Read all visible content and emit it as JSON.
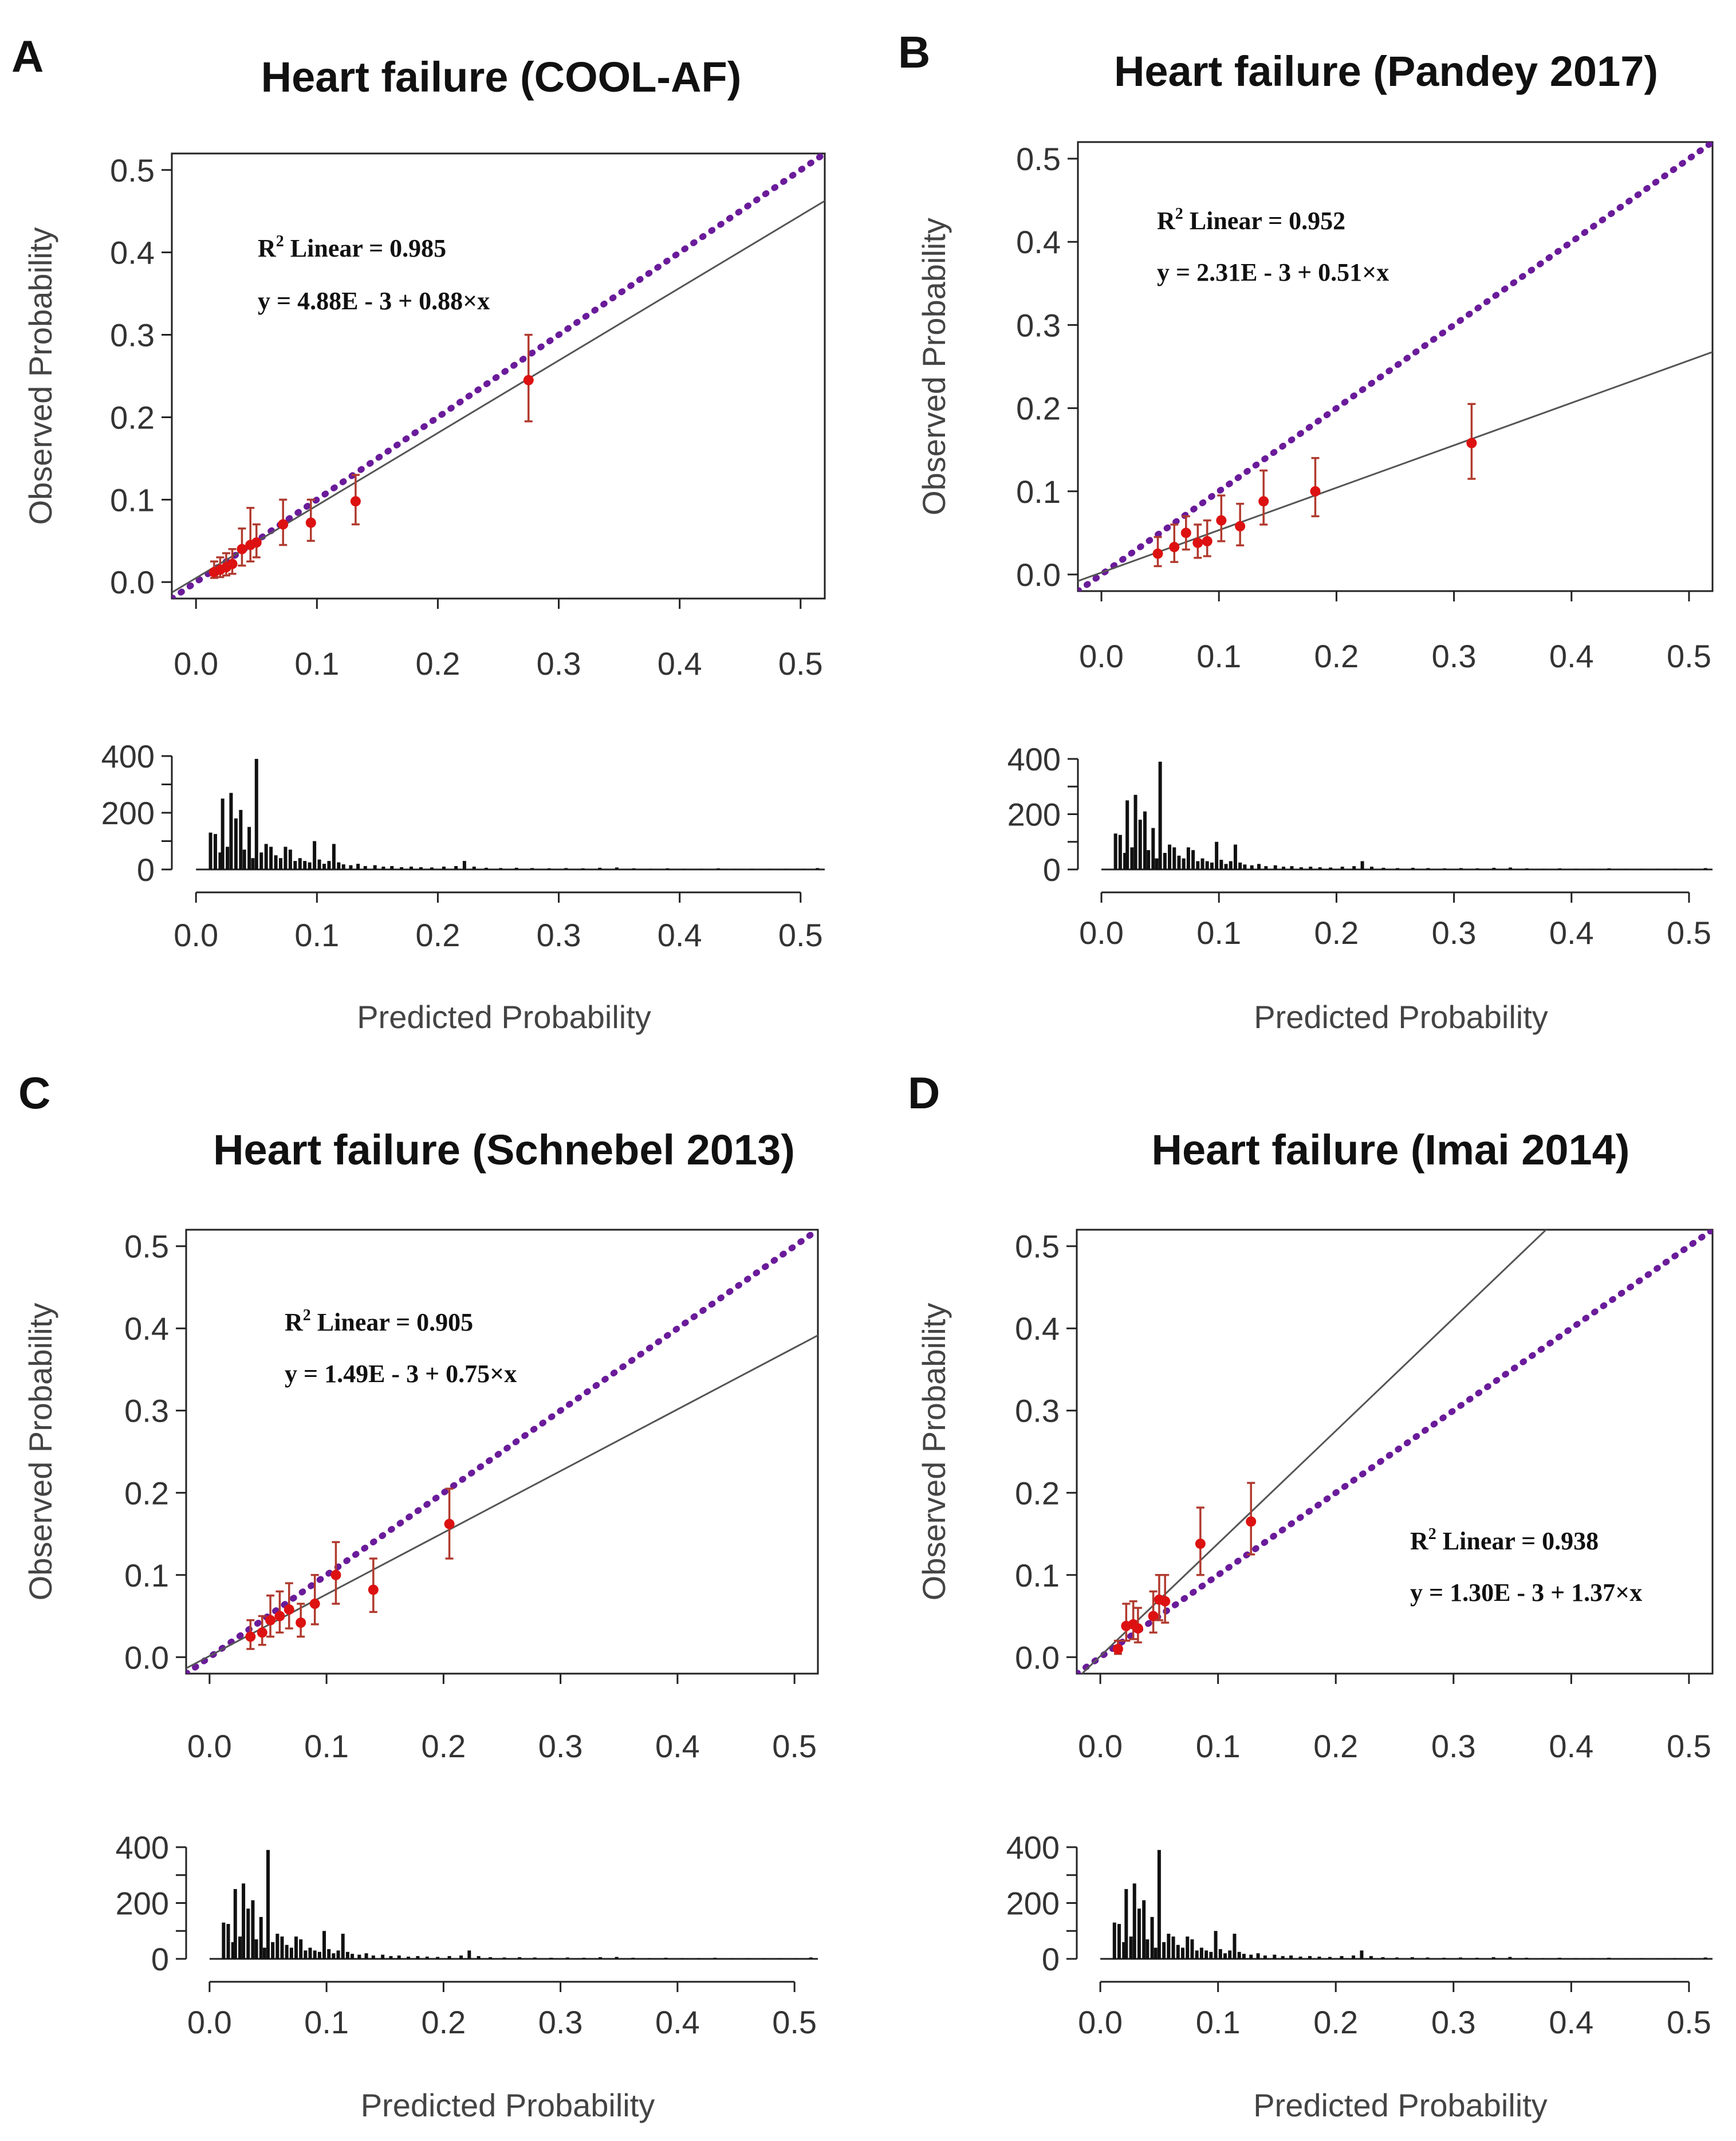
{
  "figure": {
    "ticks": [
      "0.0",
      "0.1",
      "0.2",
      "0.3",
      "0.4",
      "0.5"
    ],
    "hist_ticks": [
      "0",
      "200",
      "400"
    ],
    "xlabel": "Predicted Probability",
    "ylabel": "Observed Probability",
    "r2_prefix": "R",
    "r2_sup": "2",
    "colors": {
      "reference": "#6a1b9a",
      "points": "#dd1111",
      "errorbars": "#b03a2e",
      "fit": "#555555",
      "histogram": "#111111"
    },
    "histogram": {
      "type": "bar",
      "ylim": [
        0,
        400
      ],
      "bins": [
        {
          "x": 0.012,
          "count": 130
        },
        {
          "x": 0.016,
          "count": 125
        },
        {
          "x": 0.02,
          "count": 60
        },
        {
          "x": 0.022,
          "count": 250
        },
        {
          "x": 0.026,
          "count": 80
        },
        {
          "x": 0.029,
          "count": 270
        },
        {
          "x": 0.033,
          "count": 180
        },
        {
          "x": 0.037,
          "count": 210
        },
        {
          "x": 0.04,
          "count": 70
        },
        {
          "x": 0.044,
          "count": 150
        },
        {
          "x": 0.047,
          "count": 40
        },
        {
          "x": 0.05,
          "count": 390
        },
        {
          "x": 0.054,
          "count": 60
        },
        {
          "x": 0.058,
          "count": 90
        },
        {
          "x": 0.062,
          "count": 80
        },
        {
          "x": 0.066,
          "count": 50
        },
        {
          "x": 0.07,
          "count": 40
        },
        {
          "x": 0.074,
          "count": 80
        },
        {
          "x": 0.078,
          "count": 70
        },
        {
          "x": 0.082,
          "count": 30
        },
        {
          "x": 0.086,
          "count": 40
        },
        {
          "x": 0.09,
          "count": 30
        },
        {
          "x": 0.094,
          "count": 25
        },
        {
          "x": 0.098,
          "count": 100
        },
        {
          "x": 0.102,
          "count": 35
        },
        {
          "x": 0.106,
          "count": 20
        },
        {
          "x": 0.11,
          "count": 30
        },
        {
          "x": 0.114,
          "count": 90
        },
        {
          "x": 0.118,
          "count": 25
        },
        {
          "x": 0.122,
          "count": 18
        },
        {
          "x": 0.128,
          "count": 15
        },
        {
          "x": 0.134,
          "count": 20
        },
        {
          "x": 0.14,
          "count": 12
        },
        {
          "x": 0.148,
          "count": 15
        },
        {
          "x": 0.155,
          "count": 10
        },
        {
          "x": 0.162,
          "count": 12
        },
        {
          "x": 0.17,
          "count": 8
        },
        {
          "x": 0.178,
          "count": 10
        },
        {
          "x": 0.186,
          "count": 8
        },
        {
          "x": 0.195,
          "count": 7
        },
        {
          "x": 0.205,
          "count": 10
        },
        {
          "x": 0.215,
          "count": 12
        },
        {
          "x": 0.222,
          "count": 30
        },
        {
          "x": 0.23,
          "count": 10
        },
        {
          "x": 0.24,
          "count": 6
        },
        {
          "x": 0.252,
          "count": 5
        },
        {
          "x": 0.265,
          "count": 6
        },
        {
          "x": 0.278,
          "count": 5
        },
        {
          "x": 0.292,
          "count": 4
        },
        {
          "x": 0.306,
          "count": 5
        },
        {
          "x": 0.32,
          "count": 4
        },
        {
          "x": 0.334,
          "count": 6
        },
        {
          "x": 0.348,
          "count": 7
        },
        {
          "x": 0.362,
          "count": 4
        },
        {
          "x": 0.376,
          "count": 3
        },
        {
          "x": 0.39,
          "count": 4
        },
        {
          "x": 0.404,
          "count": 3
        },
        {
          "x": 0.418,
          "count": 3
        },
        {
          "x": 0.432,
          "count": 4
        },
        {
          "x": 0.446,
          "count": 2
        },
        {
          "x": 0.46,
          "count": 3
        },
        {
          "x": 0.474,
          "count": 2
        },
        {
          "x": 0.488,
          "count": 3
        },
        {
          "x": 0.502,
          "count": 2
        },
        {
          "x": 0.514,
          "count": 5
        }
      ]
    }
  },
  "chart_data": [
    {
      "type": "scatter",
      "panel": "A",
      "title": "Heart failure (COOL-AF)",
      "xlabel": "Predicted Probability",
      "ylabel": "Observed Probability",
      "xlim": [
        -0.02,
        0.52
      ],
      "ylim": [
        -0.02,
        0.52
      ],
      "r2_text": " Linear = 0.985",
      "equation": "y = 4.88E - 3 + 0.88×x",
      "fit": {
        "intercept": 0.00488,
        "slope": 0.88
      },
      "points": [
        {
          "x": 0.015,
          "y": 0.012,
          "lo": 0.005,
          "hi": 0.025
        },
        {
          "x": 0.02,
          "y": 0.015,
          "lo": 0.006,
          "hi": 0.03
        },
        {
          "x": 0.025,
          "y": 0.018,
          "lo": 0.008,
          "hi": 0.035
        },
        {
          "x": 0.03,
          "y": 0.022,
          "lo": 0.01,
          "hi": 0.04
        },
        {
          "x": 0.038,
          "y": 0.04,
          "lo": 0.02,
          "hi": 0.065
        },
        {
          "x": 0.045,
          "y": 0.045,
          "lo": 0.025,
          "hi": 0.09
        },
        {
          "x": 0.05,
          "y": 0.048,
          "lo": 0.03,
          "hi": 0.07
        },
        {
          "x": 0.072,
          "y": 0.07,
          "lo": 0.045,
          "hi": 0.1
        },
        {
          "x": 0.095,
          "y": 0.072,
          "lo": 0.05,
          "hi": 0.1
        },
        {
          "x": 0.132,
          "y": 0.098,
          "lo": 0.07,
          "hi": 0.13
        },
        {
          "x": 0.275,
          "y": 0.245,
          "lo": 0.195,
          "hi": 0.3
        }
      ]
    },
    {
      "type": "scatter",
      "panel": "B",
      "title": "Heart failure (Pandey 2017)",
      "xlabel": "Predicted Probability",
      "ylabel": "Observed Probability",
      "xlim": [
        -0.02,
        0.52
      ],
      "ylim": [
        -0.02,
        0.52
      ],
      "r2_text": " Linear = 0.952",
      "equation": "y = 2.31E - 3 + 0.51×x",
      "fit": {
        "intercept": 0.00231,
        "slope": 0.51
      },
      "points": [
        {
          "x": 0.048,
          "y": 0.025,
          "lo": 0.01,
          "hi": 0.045
        },
        {
          "x": 0.062,
          "y": 0.033,
          "lo": 0.015,
          "hi": 0.06
        },
        {
          "x": 0.072,
          "y": 0.05,
          "lo": 0.03,
          "hi": 0.07
        },
        {
          "x": 0.082,
          "y": 0.038,
          "lo": 0.02,
          "hi": 0.06
        },
        {
          "x": 0.09,
          "y": 0.04,
          "lo": 0.022,
          "hi": 0.065
        },
        {
          "x": 0.102,
          "y": 0.065,
          "lo": 0.04,
          "hi": 0.095
        },
        {
          "x": 0.118,
          "y": 0.058,
          "lo": 0.035,
          "hi": 0.085
        },
        {
          "x": 0.138,
          "y": 0.088,
          "lo": 0.06,
          "hi": 0.125
        },
        {
          "x": 0.182,
          "y": 0.1,
          "lo": 0.07,
          "hi": 0.14
        },
        {
          "x": 0.315,
          "y": 0.158,
          "lo": 0.115,
          "hi": 0.205
        }
      ]
    },
    {
      "type": "scatter",
      "panel": "C",
      "title": "Heart failure (Schnebel 2013)",
      "xlabel": "Predicted Probability",
      "ylabel": "Observed Probability",
      "xlim": [
        -0.02,
        0.52
      ],
      "ylim": [
        -0.02,
        0.52
      ],
      "r2_text": " Linear = 0.905",
      "equation": "y = 1.49E - 3 + 0.75×x",
      "fit": {
        "intercept": 0.00149,
        "slope": 0.75
      },
      "points": [
        {
          "x": 0.035,
          "y": 0.025,
          "lo": 0.01,
          "hi": 0.045
        },
        {
          "x": 0.045,
          "y": 0.03,
          "lo": 0.015,
          "hi": 0.05
        },
        {
          "x": 0.052,
          "y": 0.045,
          "lo": 0.025,
          "hi": 0.075
        },
        {
          "x": 0.06,
          "y": 0.05,
          "lo": 0.03,
          "hi": 0.08
        },
        {
          "x": 0.068,
          "y": 0.058,
          "lo": 0.035,
          "hi": 0.09
        },
        {
          "x": 0.078,
          "y": 0.042,
          "lo": 0.025,
          "hi": 0.065
        },
        {
          "x": 0.09,
          "y": 0.065,
          "lo": 0.04,
          "hi": 0.1
        },
        {
          "x": 0.108,
          "y": 0.1,
          "lo": 0.065,
          "hi": 0.14
        },
        {
          "x": 0.14,
          "y": 0.082,
          "lo": 0.055,
          "hi": 0.12
        },
        {
          "x": 0.205,
          "y": 0.162,
          "lo": 0.12,
          "hi": 0.205
        }
      ]
    },
    {
      "type": "scatter",
      "panel": "D",
      "title": "Heart failure (Imai 2014)",
      "xlabel": "Predicted Probability",
      "ylabel": "Observed Probability",
      "xlim": [
        -0.02,
        0.52
      ],
      "ylim": [
        -0.02,
        0.52
      ],
      "r2_text": " Linear = 0.938",
      "equation": "y = 1.30E - 3 + 1.37×x",
      "fit": {
        "intercept": 0.0013,
        "slope": 1.37
      },
      "points": [
        {
          "x": 0.015,
          "y": 0.01,
          "lo": 0.004,
          "hi": 0.02
        },
        {
          "x": 0.022,
          "y": 0.038,
          "lo": 0.02,
          "hi": 0.065
        },
        {
          "x": 0.028,
          "y": 0.04,
          "lo": 0.022,
          "hi": 0.068
        },
        {
          "x": 0.032,
          "y": 0.035,
          "lo": 0.018,
          "hi": 0.06
        },
        {
          "x": 0.045,
          "y": 0.05,
          "lo": 0.03,
          "hi": 0.08
        },
        {
          "x": 0.05,
          "y": 0.07,
          "lo": 0.045,
          "hi": 0.1
        },
        {
          "x": 0.055,
          "y": 0.068,
          "lo": 0.042,
          "hi": 0.1
        },
        {
          "x": 0.085,
          "y": 0.138,
          "lo": 0.1,
          "hi": 0.182
        },
        {
          "x": 0.128,
          "y": 0.165,
          "lo": 0.125,
          "hi": 0.212
        }
      ]
    }
  ]
}
